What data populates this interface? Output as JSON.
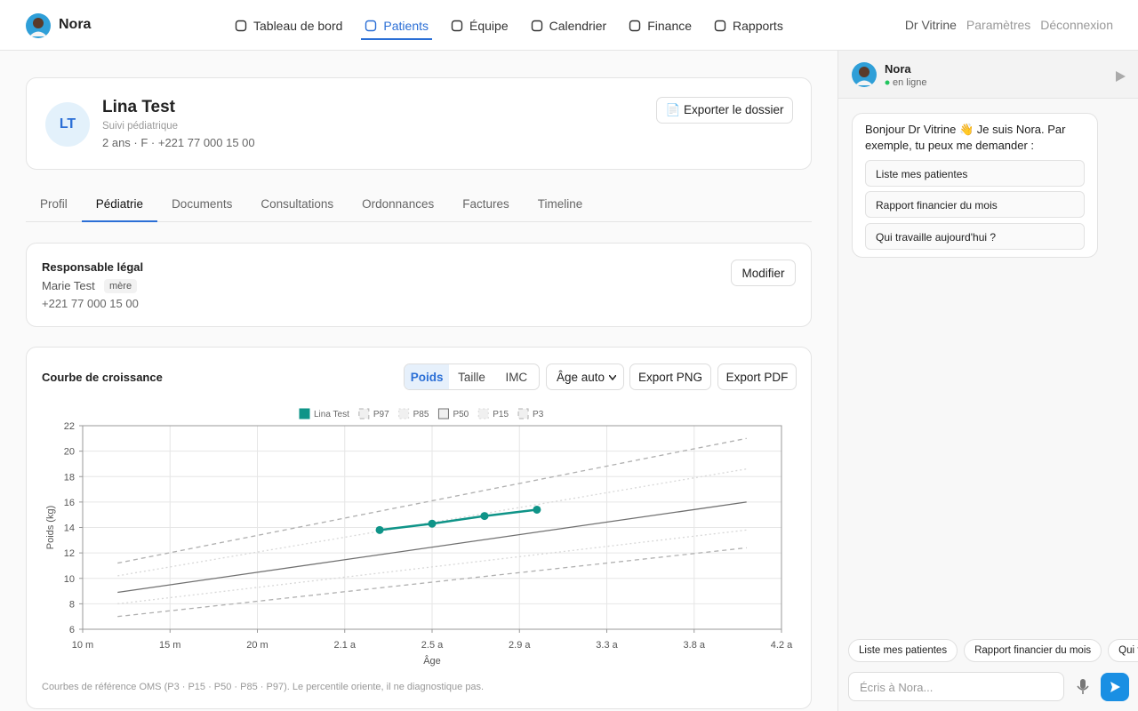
{
  "nav": {
    "brand": "Nora",
    "items": [
      "Tableau de bord",
      "Patients",
      "Équipe",
      "Calendrier",
      "Finance",
      "Rapports"
    ],
    "active": 1,
    "user": "Dr Vitrine",
    "settings": "Paramètres",
    "logout": "Déconnexion"
  },
  "patient": {
    "initials": "LT",
    "name": "Lina Test",
    "subtitle": "Suivi pédiatrique",
    "meta": "2 ans · F · +221 77 000 15 00",
    "export": "📄 Exporter le dossier"
  },
  "tabs": {
    "items": [
      "Profil",
      "Pédiatrie",
      "Documents",
      "Consultations",
      "Ordonnances",
      "Factures",
      "Timeline"
    ],
    "active": 1
  },
  "guardian": {
    "title": "Responsable légal",
    "name": "Marie Test",
    "relation": "mère",
    "phone": "+221 77 000 15 00",
    "edit": "Modifier"
  },
  "growth": {
    "metrics": [
      "Poids",
      "Taille",
      "IMC"
    ],
    "active_metric": 0,
    "age_select": "Âge auto",
    "export_png": "Export PNG",
    "export_pdf": "Export PDF",
    "footnote": "Courbes de référence OMS (P3 · P15 · P50 · P85 · P97). Le percentile oriente, il ne diagnostique pas."
  },
  "chart_data": {
    "type": "line",
    "title": "Courbe de croissance",
    "x_label": "Âge",
    "y_label": "Poids (kg)",
    "xlim": [
      10,
      50
    ],
    "xticks": [
      {
        "value": 10,
        "label": "10 m"
      },
      {
        "value": 15,
        "label": "15 m"
      },
      {
        "value": 20,
        "label": "20 m"
      },
      {
        "value": 25,
        "label": "2.1 a"
      },
      {
        "value": 30,
        "label": "2.5 a"
      },
      {
        "value": 35,
        "label": "2.9 a"
      },
      {
        "value": 40,
        "label": "3.3 a"
      },
      {
        "value": 45,
        "label": "3.8 a"
      },
      {
        "value": 50,
        "label": "4.2 a"
      }
    ],
    "ylim": [
      6,
      22
    ],
    "yticks": [
      6,
      8,
      10,
      12,
      14,
      16,
      18,
      20,
      22
    ],
    "grid": true,
    "legend": "top",
    "series": [
      {
        "name": "Lina Test",
        "color": "#0f9488",
        "dash": "solid",
        "markers": true,
        "x": [
          27,
          30,
          33,
          36
        ],
        "values": [
          13.8,
          14.3,
          14.9,
          15.4
        ]
      },
      {
        "name": "P97",
        "color": "#b0b0b0",
        "dash": "dashed",
        "markers": false,
        "x": [
          12,
          48
        ],
        "values": [
          11.2,
          21.0
        ]
      },
      {
        "name": "P85",
        "color": "#d8d8d8",
        "dash": "dotted",
        "markers": false,
        "x": [
          12,
          48
        ],
        "values": [
          10.2,
          18.6
        ]
      },
      {
        "name": "P50",
        "color": "#707070",
        "dash": "solid",
        "markers": false,
        "x": [
          12,
          48
        ],
        "values": [
          8.9,
          16.0
        ]
      },
      {
        "name": "P15",
        "color": "#d8d8d8",
        "dash": "dotted",
        "markers": false,
        "x": [
          12,
          48
        ],
        "values": [
          8.0,
          13.8
        ]
      },
      {
        "name": "P3",
        "color": "#b0b0b0",
        "dash": "dashed",
        "markers": false,
        "x": [
          12,
          48
        ],
        "values": [
          7.0,
          12.4
        ]
      }
    ]
  },
  "chat": {
    "name": "Nora",
    "status": "en ligne",
    "message": "Bonjour Dr Vitrine 👋 Je suis Nora. Par exemple, tu peux me demander :",
    "suggestions": [
      "Liste mes patientes",
      "Rapport financier du mois",
      "Qui travaille aujourd'hui ?"
    ],
    "chips": [
      "Liste mes patientes",
      "Rapport financier du mois",
      "Qui travaille aujourd'hui ?"
    ],
    "placeholder": "Écris à Nora..."
  }
}
